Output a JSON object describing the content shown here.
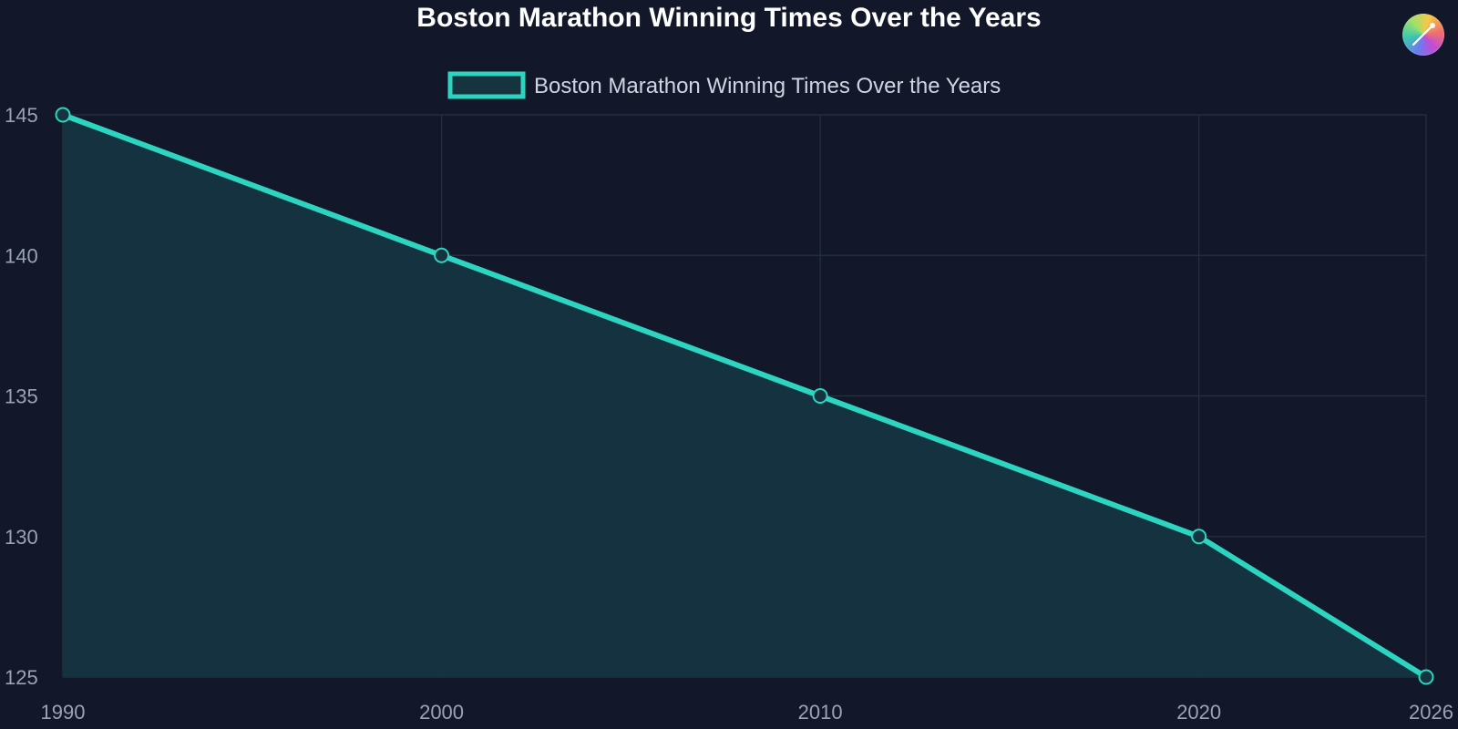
{
  "chart_data": {
    "type": "area",
    "title": "Boston Marathon Winning Times Over the Years",
    "x": [
      1990,
      2000,
      2010,
      2020,
      2026
    ],
    "series": [
      {
        "name": "Boston Marathon Winning Times Over the Years",
        "values": [
          145,
          140,
          135,
          130,
          125
        ]
      }
    ],
    "xticks": [
      1990,
      2000,
      2010,
      2020,
      2026
    ],
    "yticks": [
      125,
      130,
      135,
      140,
      145
    ],
    "xlim": [
      1990,
      2026
    ],
    "ylim": [
      125,
      145
    ],
    "xlabel": "",
    "ylabel": "",
    "grid": true,
    "legend": "top-center",
    "colors": {
      "background": "#121829",
      "line": "#2dd4bf",
      "fill": "#153440",
      "grid": "#263140",
      "tick": "#9aa3b2",
      "legend_text": "#cfd5e0"
    }
  },
  "logo": {
    "icon": "brush-logo-icon"
  }
}
